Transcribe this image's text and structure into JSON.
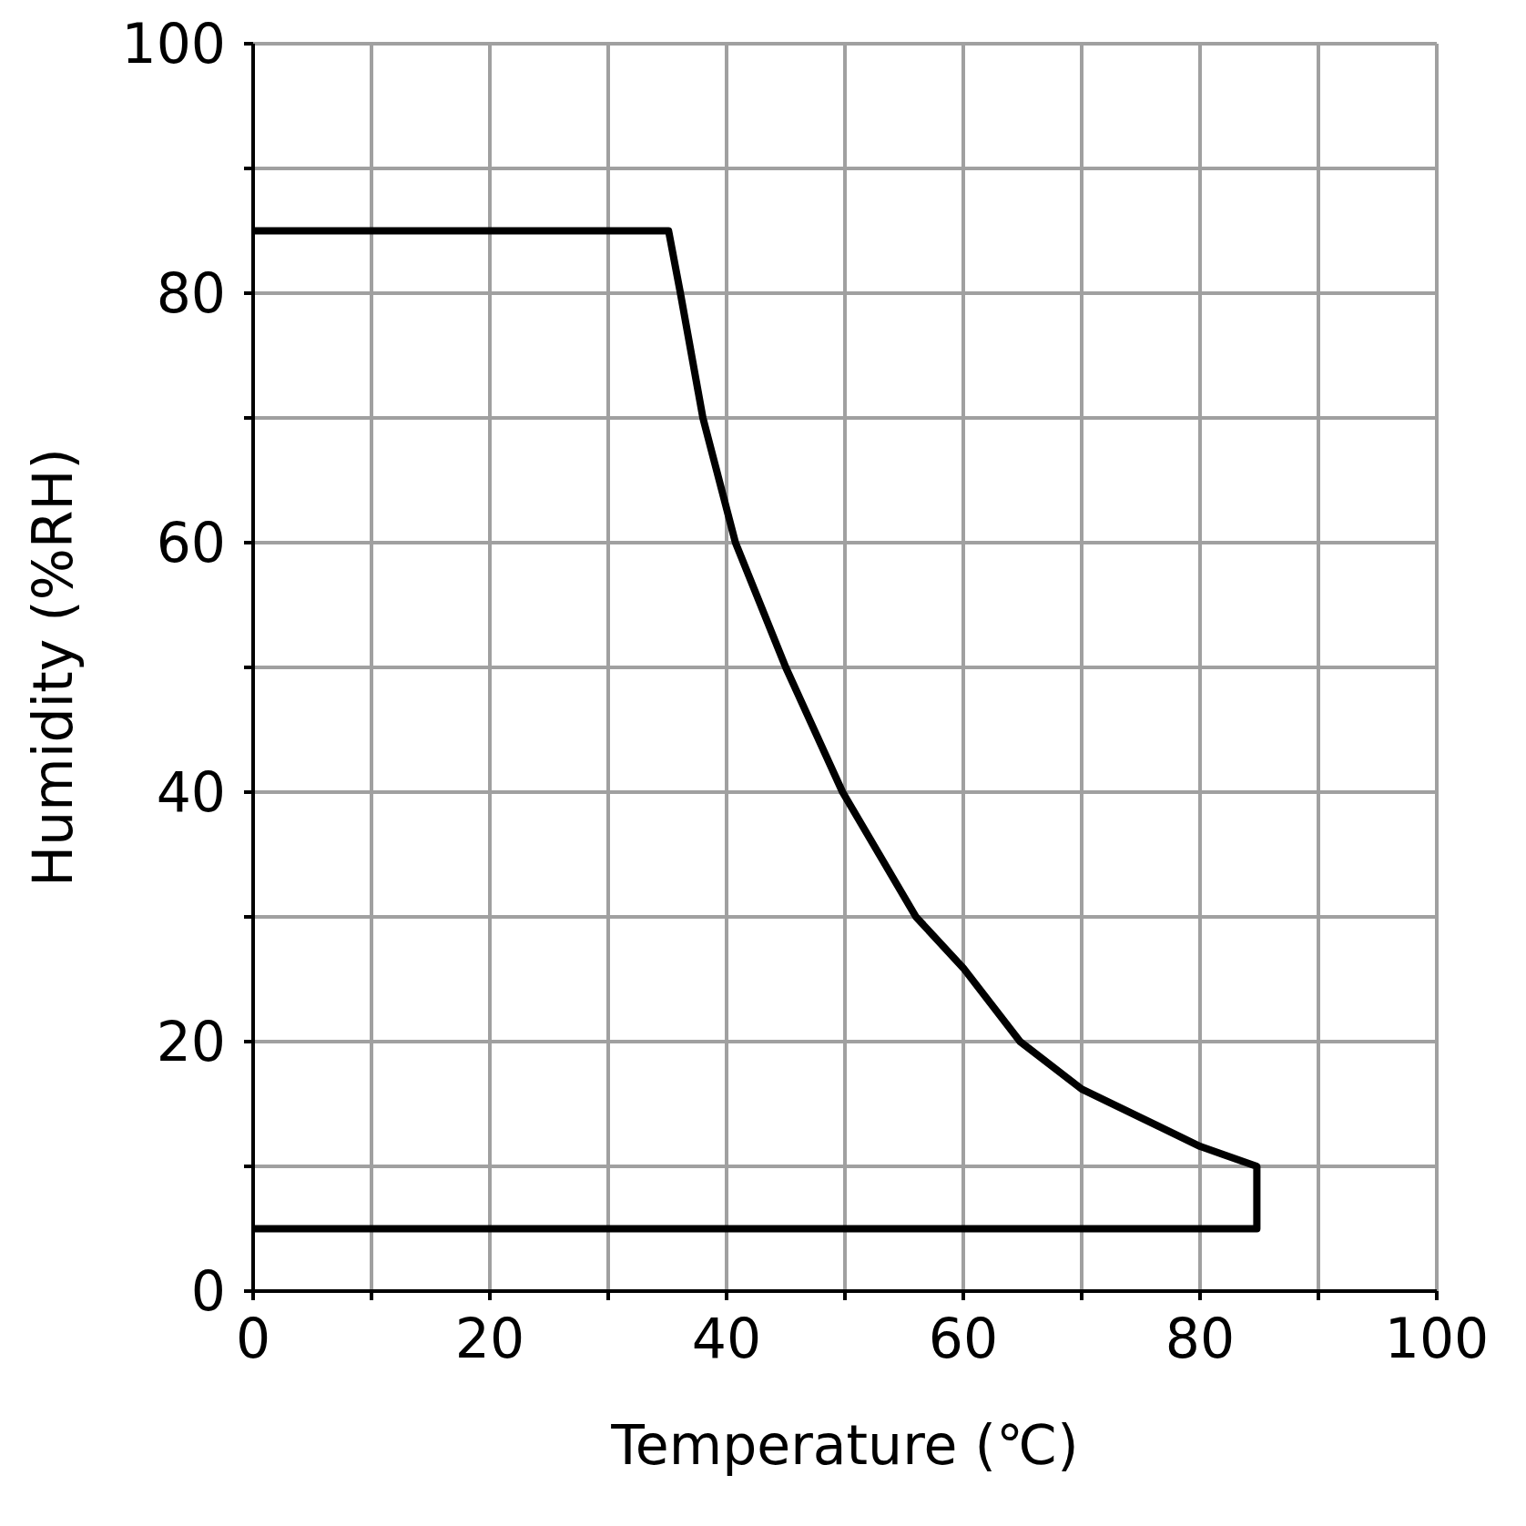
{
  "chart_data": {
    "type": "line",
    "xlabel": "Temperature (℃)",
    "ylabel": "Humidity (%RH)",
    "x": [
      0,
      35.1,
      36.1,
      38,
      40.75,
      45,
      49.8,
      56,
      60,
      64.8,
      70,
      80,
      84.8,
      84.8,
      0
    ],
    "series": [
      {
        "color": "#000000",
        "values": [
          85,
          85,
          80,
          70,
          60,
          50,
          40,
          30,
          25.9,
          20,
          16.2,
          11.6,
          10,
          5,
          5
        ]
      }
    ],
    "xlim": [
      0,
      100
    ],
    "ylim": [
      0,
      100
    ],
    "xticks": [
      0,
      {
        "value": 10,
        "label": null
      },
      20,
      {
        "value": 30,
        "label": null
      },
      40,
      {
        "value": 50,
        "label": null
      },
      60,
      {
        "value": 70,
        "label": null
      },
      80,
      {
        "value": 90,
        "label": null
      },
      100
    ],
    "yticks": [
      0,
      {
        "value": 10,
        "label": null
      },
      20,
      {
        "value": 30,
        "label": null
      },
      40,
      {
        "value": 50,
        "label": null
      },
      60,
      {
        "value": 70,
        "label": null
      },
      80,
      {
        "value": 90,
        "label": null
      },
      100
    ],
    "grid": true,
    "marker": "none",
    "line_style": "solid"
  }
}
